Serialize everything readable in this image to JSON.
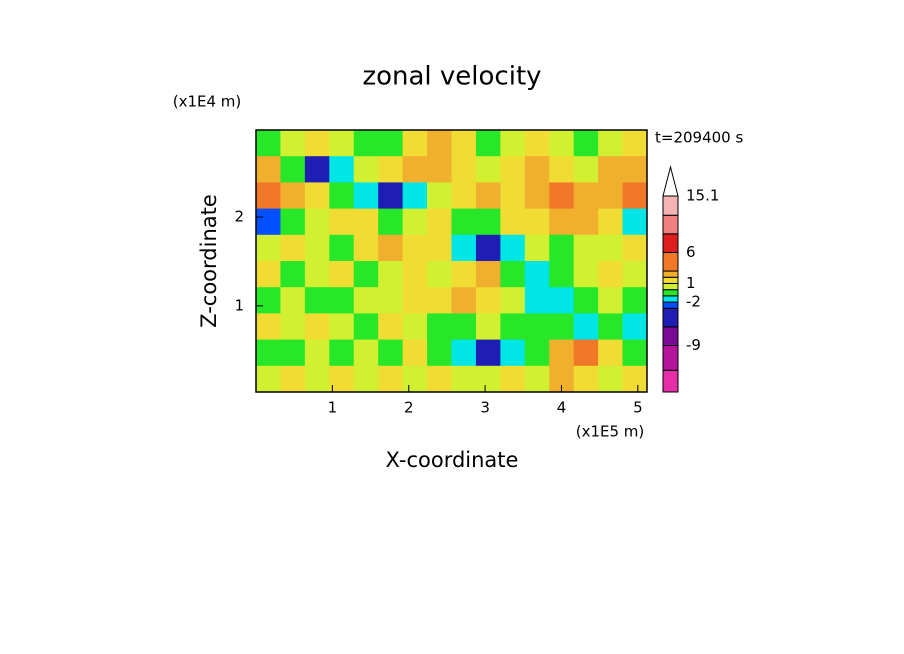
{
  "chart_data": {
    "type": "contour",
    "title": "zonal velocity",
    "xlabel": "X-coordinate",
    "ylabel": "Z-coordinate",
    "xunit": "(x1E5 m)",
    "yunit": "(x1E4 m)",
    "annotation": "t=209400 s",
    "xlim": [
      0,
      5.12
    ],
    "ylim": [
      0.03,
      2.98
    ],
    "xticks": [
      1,
      2,
      3,
      4,
      5
    ],
    "yticks": [
      1,
      2
    ],
    "values": [
      [
        -0.5,
        0.5,
        1.5,
        0.5,
        -0.5,
        -0.5,
        1.5,
        2.5,
        1.5,
        -0.5,
        0.5,
        1.5,
        0.5,
        -0.5,
        0.5,
        1.5
      ],
      [
        2.5,
        -0.5,
        -4,
        -1.5,
        0.5,
        1.5,
        2.5,
        2.5,
        1.5,
        0.5,
        1.5,
        2.5,
        1.5,
        0.5,
        2.5,
        2.5
      ],
      [
        4,
        2.5,
        1.5,
        -0.5,
        -1.5,
        -4,
        -1.5,
        0.5,
        1.5,
        2.5,
        1.5,
        2.5,
        4,
        2.5,
        2.5,
        4
      ],
      [
        -2.5,
        -0.5,
        0.5,
        1.5,
        1.5,
        -0.5,
        0.5,
        1.5,
        -0.5,
        -0.5,
        1.5,
        1.5,
        2.5,
        2.5,
        1.5,
        -1.5
      ],
      [
        0.5,
        1.5,
        0.5,
        -0.5,
        1.5,
        2.5,
        1.5,
        1.5,
        -1.5,
        -4,
        -1.5,
        0.5,
        -0.5,
        0.5,
        0.5,
        1.5
      ],
      [
        1.5,
        -0.5,
        0.5,
        1.5,
        -0.5,
        0.5,
        1.5,
        0.5,
        1.5,
        2.5,
        -0.5,
        -1.5,
        -0.5,
        0.5,
        1.5,
        0.5
      ],
      [
        -0.5,
        0.5,
        -0.5,
        -0.5,
        0.5,
        0.5,
        1.5,
        1.5,
        2.5,
        1.5,
        0.5,
        -1.5,
        -1.5,
        -0.5,
        0.5,
        -0.5
      ],
      [
        1.5,
        0.5,
        1.5,
        0.5,
        -0.5,
        1.5,
        0.5,
        -0.5,
        -0.5,
        0.5,
        -0.5,
        -0.5,
        -0.5,
        -1.5,
        -0.5,
        -1.5
      ],
      [
        -0.5,
        -0.5,
        0.5,
        -0.5,
        0.5,
        -0.5,
        1.5,
        -0.5,
        -1.5,
        -4,
        -1.5,
        -0.5,
        2.5,
        4,
        1.5,
        -0.5
      ],
      [
        0.5,
        1.5,
        0.5,
        1.5,
        0.5,
        1.5,
        0.5,
        1.5,
        0.5,
        0.5,
        1.5,
        0.5,
        2.5,
        1.5,
        0.5,
        1.5
      ]
    ],
    "levels": [
      -16.5,
      -13,
      -9,
      -6,
      -3,
      -2,
      -1,
      0,
      1,
      2,
      3,
      6,
      9,
      12,
      15.1
    ],
    "colors": [
      "#e62ea8",
      "#b4149c",
      "#7a0a96",
      "#1e1eb4",
      "#0050ff",
      "#00e6e6",
      "#28e628",
      "#d2f032",
      "#f0dc32",
      "#f0af2d",
      "#f07828",
      "#dc1e1e",
      "#f08080",
      "#f5b4b4"
    ],
    "over_color": "#ffffff",
    "clim": [
      -16.5,
      15.1
    ],
    "cbar_ticks": [
      15.1,
      6,
      1,
      -2,
      -9
    ]
  }
}
